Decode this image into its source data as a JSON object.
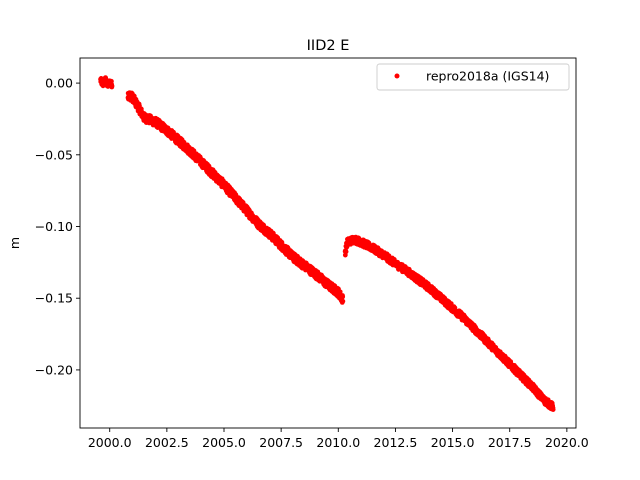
{
  "chart_data": {
    "type": "scatter",
    "title": "IID2 E",
    "xlabel": "",
    "ylabel": "m",
    "xlim": [
      1998.7,
      2020.4
    ],
    "ylim": [
      -0.2405,
      0.0175
    ],
    "xticks": [
      2000.0,
      2002.5,
      2005.0,
      2007.5,
      2010.0,
      2012.5,
      2015.0,
      2017.5,
      2020.0
    ],
    "xtick_labels": [
      "2000.0",
      "2002.5",
      "2005.0",
      "2007.5",
      "2010.0",
      "2012.5",
      "2015.0",
      "2017.5",
      "2020.0"
    ],
    "yticks": [
      0.0,
      -0.05,
      -0.1,
      -0.15,
      -0.2
    ],
    "ytick_labels": [
      "0.00",
      "−0.05",
      "−0.10",
      "−0.15",
      "−0.20"
    ],
    "grid": false,
    "legend_position": "top-right",
    "series": [
      {
        "name": "repro2018a (IGS14)",
        "color": "#ff0000",
        "marker": "circle",
        "segments": [
          {
            "x": [
              1999.6,
              1999.7,
              1999.8,
              1999.9,
              2000.0,
              2000.1
            ],
            "y": [
              0.002,
              -0.001,
              0.003,
              -0.002,
              0.001,
              -0.001
            ],
            "spread": 0.004
          },
          {
            "x": [
              2000.8,
              2001.0,
              2001.3,
              2001.5,
              2002.0,
              2002.5,
              2003.0,
              2003.5,
              2004.0,
              2004.5,
              2005.0,
              2005.5,
              2006.0,
              2006.5,
              2007.0,
              2007.5,
              2008.0,
              2008.5,
              2009.0,
              2009.5,
              2010.0,
              2010.2
            ],
            "y": [
              -0.008,
              -0.01,
              -0.018,
              -0.024,
              -0.027,
              -0.033,
              -0.04,
              -0.047,
              -0.055,
              -0.063,
              -0.071,
              -0.08,
              -0.089,
              -0.098,
              -0.105,
              -0.113,
              -0.121,
              -0.127,
              -0.133,
              -0.14,
              -0.146,
              -0.151
            ],
            "spread": 0.006
          },
          {
            "x": [
              2010.3,
              2010.4,
              2010.7,
              2011.0,
              2011.5,
              2012.0,
              2012.5,
              2013.0,
              2013.5,
              2014.0,
              2014.5,
              2015.0,
              2015.5,
              2016.0,
              2016.5,
              2017.0,
              2017.5,
              2018.0,
              2018.5,
              2019.0,
              2019.4
            ],
            "y": [
              -0.118,
              -0.111,
              -0.109,
              -0.111,
              -0.115,
              -0.12,
              -0.126,
              -0.131,
              -0.137,
              -0.143,
              -0.15,
              -0.157,
              -0.164,
              -0.172,
              -0.18,
              -0.188,
              -0.196,
              -0.204,
              -0.212,
              -0.221,
              -0.226
            ],
            "spread": 0.005
          }
        ]
      }
    ]
  }
}
